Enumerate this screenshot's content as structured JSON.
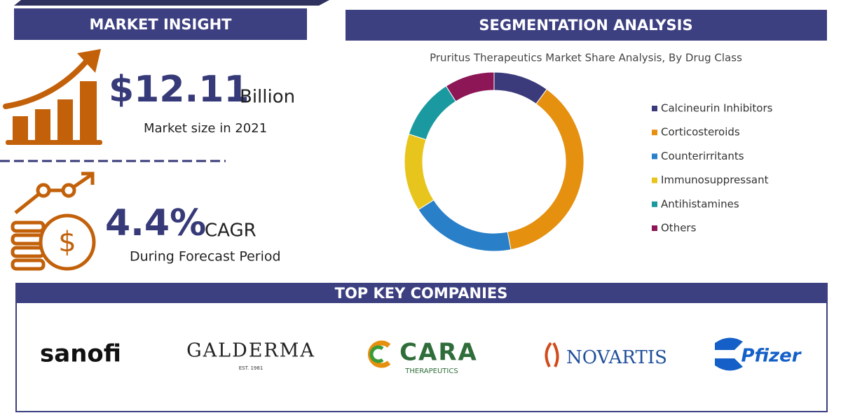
{
  "market_insight": {
    "header": "MARKET INSIGHT",
    "market_size": {
      "value": "$12.11",
      "unit": "Billion",
      "caption": "Market size in 2021"
    },
    "cagr": {
      "value": "4.4%",
      "unit": "CAGR",
      "caption": "During Forecast Period"
    }
  },
  "segmentation": {
    "header": "SEGMENTATION ANALYSIS"
  },
  "chart_data": {
    "type": "donut",
    "title": "Pruritus Therapeutics Market Share Analysis, By Drug Class",
    "categories": [
      "Calcineurin Inhibitors",
      "Corticosteroids",
      "Counterirritants",
      "Immunosuppressant",
      "Antihistamines",
      "Others"
    ],
    "values": [
      10,
      37,
      19,
      14,
      11,
      9
    ],
    "colors": [
      "#3b3a7a",
      "#e5900f",
      "#2a7fc9",
      "#e8c51c",
      "#1a9aa0",
      "#8c1656"
    ],
    "legend": "right"
  },
  "companies": {
    "header": "TOP KEY COMPANIES",
    "sanofi": "sanofi",
    "galderma": "GALDERMA",
    "galderma_est": "EST. 1981",
    "cara": "CARA",
    "cara_sub": "THERAPEUTICS",
    "novartis": "NOVARTIS",
    "pfizer": "Pfizer"
  }
}
